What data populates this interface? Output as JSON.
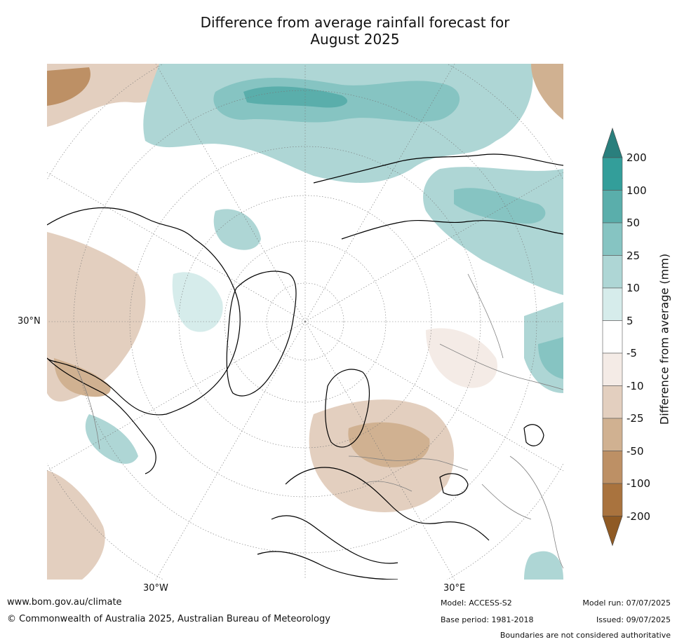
{
  "title": {
    "line1": "Difference from average rainfall forecast for",
    "line2": "August 2025"
  },
  "map": {
    "projection": "north-polar-stereographic",
    "lat_labels": [
      "30°N"
    ],
    "lon_labels": [
      "30°W",
      "30°E"
    ],
    "land_regions_depicted": [
      "North America",
      "Greenland",
      "Europe",
      "Northern Asia",
      "North Africa"
    ]
  },
  "colorbar": {
    "title": "Difference from average (mm)",
    "ticks": [
      "200",
      "100",
      "50",
      "25",
      "10",
      "5",
      "-5",
      "-10",
      "-25",
      "-50",
      "-100",
      "-200"
    ],
    "colors": {
      "gt200": "#2a7f7d",
      "100_200": "#339e9a",
      "50_100": "#5aaeab",
      "25_50": "#86c4c2",
      "10_25": "#aed6d5",
      "5_10": "#d6eceb",
      "m5_5": "#ffffff",
      "m10_m5": "#f4ebe6",
      "m25_m10": "#e3cfbf",
      "m50_m25": "#d0b191",
      "m100_m50": "#bd9065",
      "m200_m100": "#a9733e",
      "lt_m200": "#8f5a24"
    }
  },
  "footer": {
    "url": "www.bom.gov.au/climate",
    "copyright": "© Commonwealth of Australia 2025, Australian Bureau of Meteorology",
    "model": "Model: ACCESS-S2",
    "base_period": "Base period: 1981-2018",
    "model_run": "Model run: 07/07/2025",
    "issued": "Issued: 09/07/2025",
    "disclaimer": "Boundaries are not considered authoritative"
  }
}
